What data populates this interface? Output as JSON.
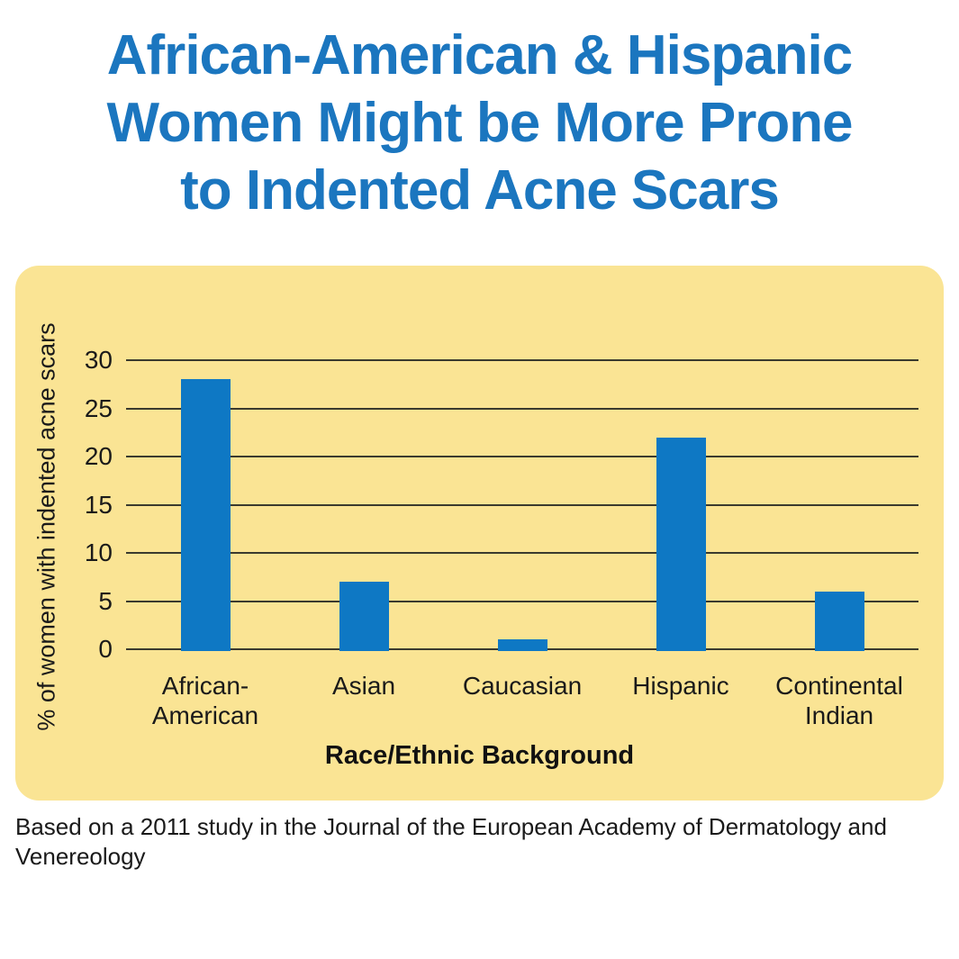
{
  "title": {
    "lines": [
      "African-American & Hispanic",
      "Women Might be More Prone",
      "to Indented Acne Scars"
    ],
    "color": "#1b76bf"
  },
  "chart_data": {
    "type": "bar",
    "categories": [
      "African-\nAmerican",
      "Asian",
      "Caucasian",
      "Hispanic",
      "Continental\nIndian"
    ],
    "values": [
      28,
      7,
      1,
      22,
      6
    ],
    "xlabel": "Race/Ethnic Background",
    "ylabel": "% of women with indented acne scars",
    "yticks": [
      0,
      5,
      10,
      15,
      20,
      25,
      30
    ],
    "ylim": [
      0,
      30
    ],
    "grid": true,
    "legend": false,
    "bar_color": "#0e78c4",
    "panel_color": "#fae494",
    "gridline_color": "#3a3a2e"
  },
  "footer": {
    "lines": [
      "Based on a 2011 study in the Journal of the European Academy of Dermatology and",
      "Venereology"
    ]
  }
}
